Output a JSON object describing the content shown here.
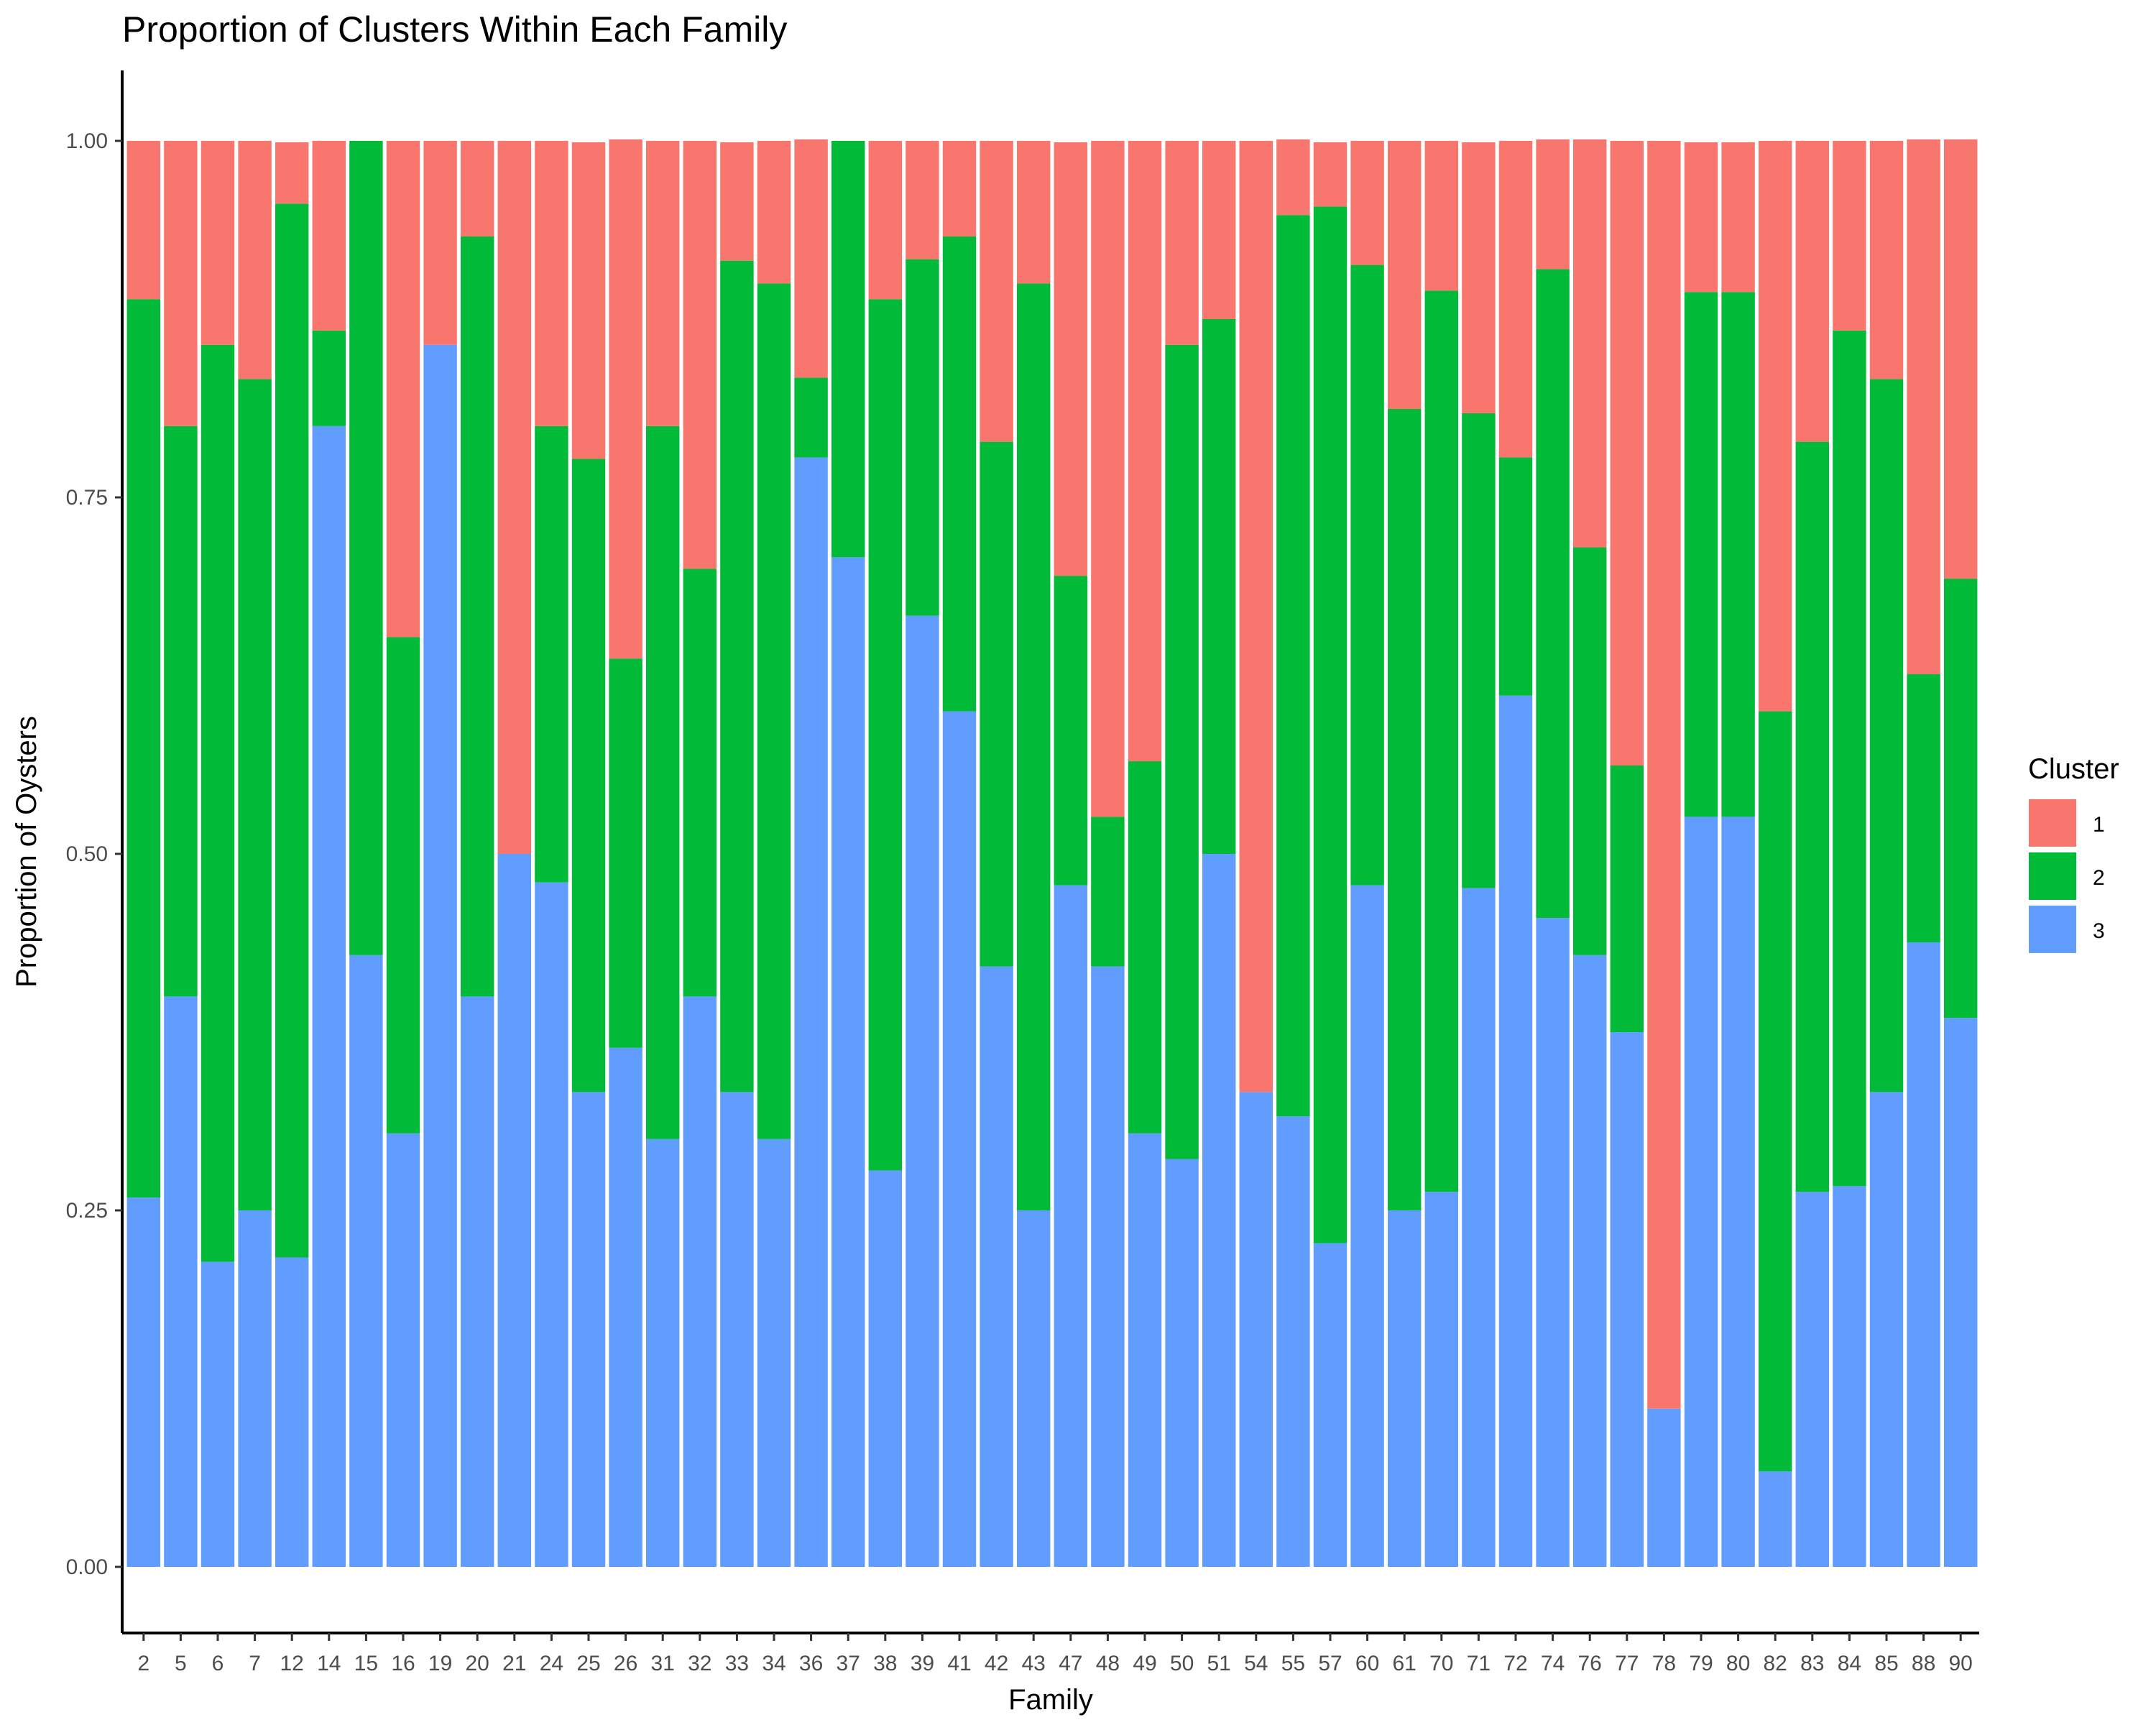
{
  "chart_data": {
    "type": "bar",
    "stacked": true,
    "title": "Proportion of Clusters Within Each Family",
    "xlabel": "Family",
    "ylabel": "Proportion of Oysters",
    "ylim": [
      0,
      1
    ],
    "yticks": [
      "0.00",
      "0.25",
      "0.50",
      "0.75",
      "1.00"
    ],
    "grid": false,
    "legend": {
      "title": "Cluster",
      "placement": "right"
    },
    "categories": [
      "2",
      "5",
      "6",
      "7",
      "12",
      "14",
      "15",
      "16",
      "19",
      "20",
      "21",
      "24",
      "25",
      "26",
      "31",
      "32",
      "33",
      "34",
      "36",
      "37",
      "38",
      "39",
      "41",
      "42",
      "43",
      "47",
      "48",
      "49",
      "50",
      "51",
      "54",
      "55",
      "57",
      "60",
      "61",
      "70",
      "71",
      "72",
      "74",
      "76",
      "77",
      "78",
      "79",
      "80",
      "82",
      "83",
      "84",
      "85",
      "88",
      "90"
    ],
    "series": [
      {
        "name": "1",
        "color": "#F8766D",
        "values": [
          0.111,
          0.2,
          0.143,
          0.167,
          0.043,
          0.133,
          0,
          0.348,
          0.143,
          0.067,
          0.5,
          0.2,
          0.222,
          0.364,
          0.2,
          0.3,
          0.083,
          0.1,
          0.167,
          0,
          0.111,
          0.083,
          0.067,
          0.211,
          0.1,
          0.304,
          0.474,
          0.435,
          0.143,
          0.125,
          0.667,
          0.053,
          0.045,
          0.087,
          0.188,
          0.105,
          0.19,
          0.222,
          0.091,
          0.286,
          0.438,
          0.889,
          0.105,
          0.105,
          0.4,
          0.211,
          0.133,
          0.167,
          0.375,
          0.308
        ]
      },
      {
        "name": "2",
        "color": "#00BA38",
        "values": [
          0.63,
          0.4,
          0.643,
          0.583,
          0.739,
          0.067,
          0.571,
          0.348,
          0,
          0.533,
          0,
          0.32,
          0.444,
          0.273,
          0.5,
          0.3,
          0.583,
          0.6,
          0.056,
          0.292,
          0.611,
          0.25,
          0.333,
          0.368,
          0.65,
          0.217,
          0.105,
          0.261,
          0.571,
          0.375,
          0,
          0.632,
          0.727,
          0.435,
          0.562,
          0.632,
          0.333,
          0.167,
          0.455,
          0.286,
          0.187,
          0,
          0.368,
          0.368,
          0.533,
          0.526,
          0.6,
          0.5,
          0.188,
          0.308
        ]
      },
      {
        "name": "3",
        "color": "#619CFF",
        "values": [
          0.259,
          0.4,
          0.214,
          0.25,
          0.217,
          0.8,
          0.429,
          0.304,
          0.857,
          0.4,
          0.5,
          0.48,
          0.333,
          0.364,
          0.3,
          0.4,
          0.333,
          0.3,
          0.778,
          0.708,
          0.278,
          0.667,
          0.6,
          0.421,
          0.25,
          0.478,
          0.421,
          0.304,
          0.286,
          0.5,
          0.333,
          0.316,
          0.227,
          0.478,
          0.25,
          0.263,
          0.476,
          0.611,
          0.455,
          0.429,
          0.375,
          0.111,
          0.526,
          0.526,
          0.067,
          0.263,
          0.267,
          0.333,
          0.438,
          0.385
        ]
      }
    ]
  }
}
